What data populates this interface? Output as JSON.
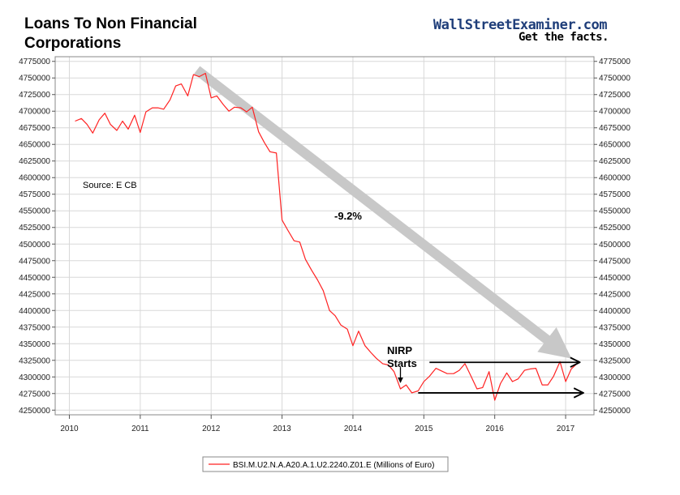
{
  "header": {
    "title_line1": "Loans To Non Financial",
    "title_line2": "Corporations",
    "brand": "WallStreetExaminer.com",
    "tagline": "Get the facts."
  },
  "colors": {
    "series": "#ff2222",
    "trend_arrow": "#c8c8c8",
    "grid": "#d8d8d8",
    "brand": "#1f3e7a"
  },
  "chart_data": {
    "type": "line",
    "title": "Loans To Non Financial Corporations",
    "xlim": [
      2009.8,
      2017.4
    ],
    "ylim": [
      4243000,
      4782000
    ],
    "x_ticks": [
      2010,
      2011,
      2012,
      2013,
      2014,
      2015,
      2016,
      2017
    ],
    "y_ticks": [
      4250000,
      4275000,
      4300000,
      4325000,
      4350000,
      4375000,
      4400000,
      4425000,
      4450000,
      4475000,
      4500000,
      4525000,
      4550000,
      4575000,
      4600000,
      4625000,
      4650000,
      4675000,
      4700000,
      4725000,
      4750000,
      4775000
    ],
    "grid": true,
    "legend_position": "bottom-center",
    "series": [
      {
        "name": "BSI.M.U2.N.A.A20.A.1.U2.2240.Z01.E (Millions of Euro)",
        "color": "#ff2222",
        "x": [
          2010.08,
          2010.17,
          2010.25,
          2010.33,
          2010.42,
          2010.5,
          2010.58,
          2010.67,
          2010.75,
          2010.83,
          2010.92,
          2011.0,
          2011.08,
          2011.17,
          2011.25,
          2011.33,
          2011.42,
          2011.5,
          2011.58,
          2011.67,
          2011.75,
          2011.83,
          2011.92,
          2012.0,
          2012.08,
          2012.17,
          2012.25,
          2012.33,
          2012.42,
          2012.5,
          2012.58,
          2012.67,
          2012.75,
          2012.83,
          2012.92,
          2013.0,
          2013.08,
          2013.17,
          2013.25,
          2013.33,
          2013.42,
          2013.5,
          2013.58,
          2013.67,
          2013.75,
          2013.83,
          2013.92,
          2014.0,
          2014.08,
          2014.17,
          2014.25,
          2014.33,
          2014.42,
          2014.5,
          2014.58,
          2014.67,
          2014.75,
          2014.83,
          2014.92,
          2015.0,
          2015.08,
          2015.17,
          2015.25,
          2015.33,
          2015.42,
          2015.5,
          2015.58,
          2015.67,
          2015.75,
          2015.83,
          2015.92,
          2016.0,
          2016.08,
          2016.17,
          2016.25,
          2016.33,
          2016.42,
          2016.5,
          2016.58,
          2016.67,
          2016.75,
          2016.83,
          2016.92,
          2017.0,
          2017.08,
          2017.17
        ],
        "values": [
          4685000,
          4689000,
          4680000,
          4667000,
          4687000,
          4697000,
          4680000,
          4671000,
          4685000,
          4673000,
          4694000,
          4668000,
          4699000,
          4705000,
          4705000,
          4703000,
          4717000,
          4738000,
          4741000,
          4723000,
          4755000,
          4752000,
          4757000,
          4720000,
          4723000,
          4710000,
          4700000,
          4706000,
          4705000,
          4699000,
          4706000,
          4669000,
          4653000,
          4639000,
          4637000,
          4536000,
          4521000,
          4505000,
          4503000,
          4477000,
          4460000,
          4446000,
          4430000,
          4400000,
          4392000,
          4378000,
          4372000,
          4347000,
          4369000,
          4347000,
          4337000,
          4328000,
          4320000,
          4318000,
          4308000,
          4282000,
          4288000,
          4276000,
          4279000,
          4293000,
          4301000,
          4313000,
          4309000,
          4305000,
          4305000,
          4310000,
          4320000,
          4300000,
          4282000,
          4284000,
          4308000,
          4265000,
          4290000,
          4306000,
          4293000,
          4297000,
          4310000,
          4312000,
          4313000,
          4288000,
          4288000,
          4301000,
          4323000,
          4293000,
          4312000,
          4321000
        ]
      }
    ],
    "annotations": {
      "source": "Source: E CB",
      "change": "-9.2%",
      "event_line1": "NIRP",
      "event_line2": "Starts"
    },
    "trend_arrow": {
      "from": [
        2011.8,
        4762000
      ],
      "to": [
        2017.15,
        4322000
      ]
    },
    "event_marker": {
      "x": 2014.67,
      "y": 4288000
    },
    "level_arrows": [
      {
        "x_from": 2015.08,
        "x_to": 2017.2,
        "y": 4322000
      },
      {
        "x_from": 2014.92,
        "x_to": 2017.25,
        "y": 4276000
      }
    ]
  }
}
